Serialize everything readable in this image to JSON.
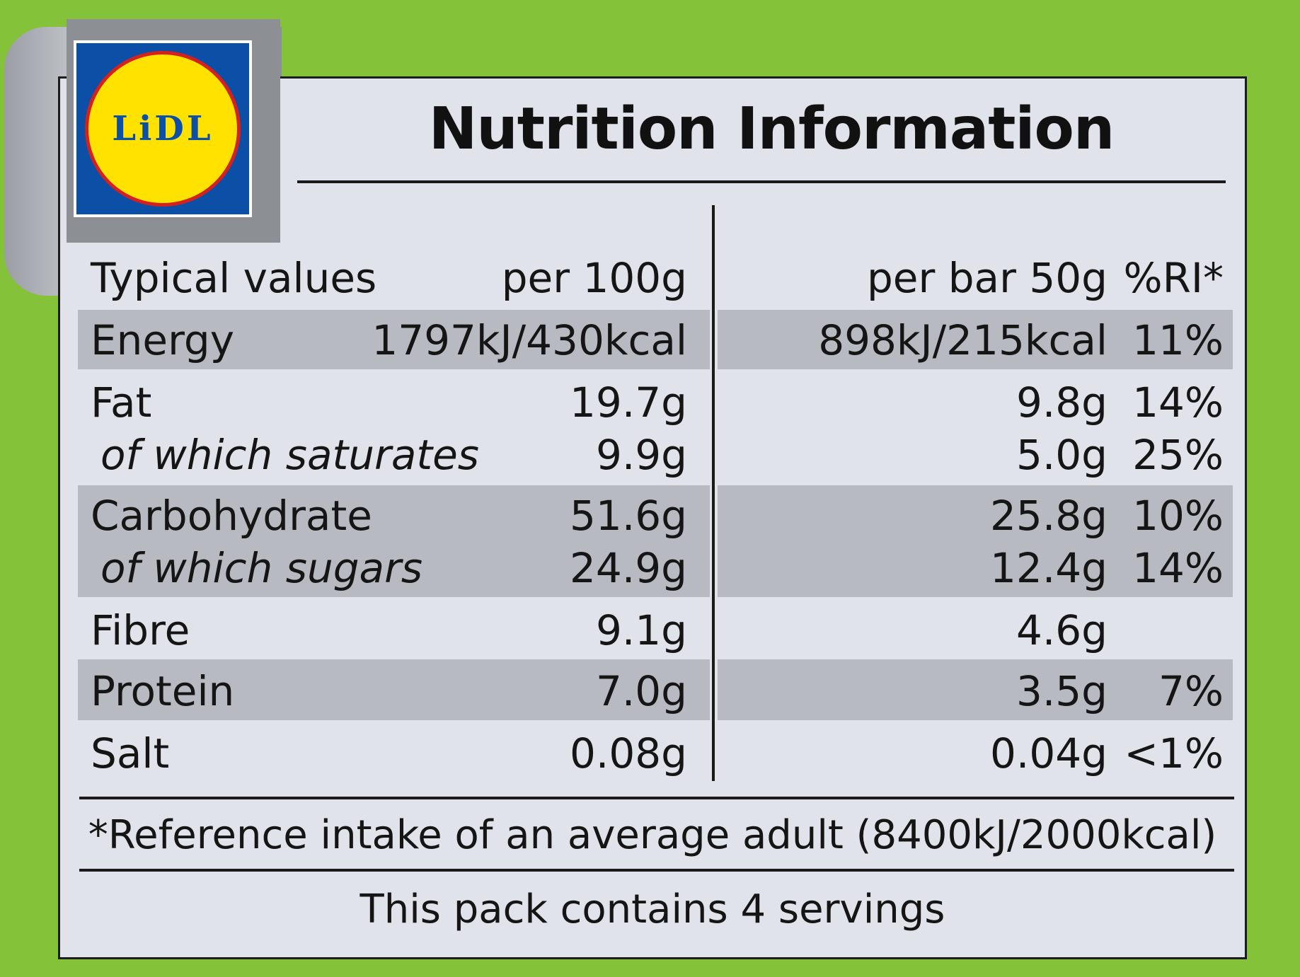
{
  "brand": {
    "logo_text": "LiDL"
  },
  "title": "Nutrition Information",
  "header": {
    "label": "Typical values",
    "per100": "per 100g",
    "perServing": "per bar 50g",
    "ri": "%RI*"
  },
  "rows": [
    {
      "label": "Energy",
      "per100": "1797kJ/430kcal",
      "perServing": "898kJ/215kcal",
      "ri": "11%"
    },
    {
      "label": "Fat",
      "per100": "19.7g",
      "perServing": "9.8g",
      "ri": "14%"
    },
    {
      "label": "of which saturates",
      "per100": "9.9g",
      "perServing": "5.0g",
      "ri": "25%"
    },
    {
      "label": "Carbohydrate",
      "per100": "51.6g",
      "perServing": "25.8g",
      "ri": "10%"
    },
    {
      "label": "of which sugars",
      "per100": "24.9g",
      "perServing": "12.4g",
      "ri": "14%"
    },
    {
      "label": "Fibre",
      "per100": "9.1g",
      "perServing": "4.6g",
      "ri": ""
    },
    {
      "label": "Protein",
      "per100": "7.0g",
      "perServing": "3.5g",
      "ri": "7%"
    },
    {
      "label": "Salt",
      "per100": "0.08g",
      "perServing": "0.04g",
      "ri": "<1%"
    }
  ],
  "footnote": "*Reference intake of an average adult (8400kJ/2000kcal)",
  "servings": "This pack contains 4 servings",
  "colors": {
    "background": "#84c23a",
    "panel": "#e0e3ea",
    "band": "#b7bac1",
    "logo_blue": "#0b4fa6",
    "logo_yellow": "#ffe200",
    "logo_red": "#d6201c"
  }
}
